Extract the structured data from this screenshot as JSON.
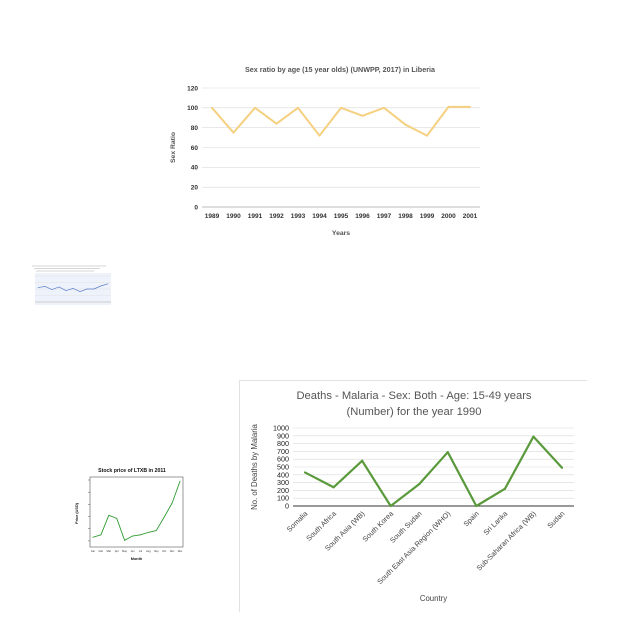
{
  "chart_data": [
    {
      "type": "line",
      "title": "Sex ratio by age (15 year olds) (UNWPP, 2017) in Liberia",
      "xlabel": "Years",
      "ylabel": "Sex Ratio",
      "categories": [
        "1989",
        "1990",
        "1991",
        "1992",
        "1993",
        "1994",
        "1995",
        "1996",
        "1997",
        "1998",
        "1999",
        "2000",
        "2001"
      ],
      "series": [
        {
          "values": [
            100,
            75,
            100,
            84,
            100,
            72,
            100,
            92,
            100,
            83,
            72,
            101,
            101
          ]
        }
      ],
      "ylim": [
        0,
        120
      ],
      "yticks": [
        0,
        20,
        40,
        60,
        80,
        100,
        120
      ],
      "grid": true,
      "color": "#f5d080"
    },
    {
      "type": "line",
      "title": "",
      "xlabel": "",
      "ylabel": "",
      "categories": [
        "",
        "",
        "",
        "",
        "",
        "",
        "",
        "",
        "",
        "",
        ""
      ],
      "series": [
        {
          "values": [
            55,
            60,
            48,
            58,
            44,
            52,
            40,
            50,
            50,
            62,
            70
          ]
        }
      ],
      "ylim": [
        0,
        100
      ],
      "grid": true,
      "color": "#5b7ec9"
    },
    {
      "type": "line",
      "title": "Stock price of LTXB in 2011",
      "xlabel": "Month",
      "ylabel": "Price (USD)",
      "categories": [
        "Jan",
        "Feb",
        "Mar",
        "Apr",
        "May",
        "Jun",
        "Jul",
        "Aug",
        "Sep",
        "Oct",
        "Nov",
        "Dec"
      ],
      "series": [
        {
          "values": [
            10.6,
            11.0,
            14.2,
            13.7,
            10.1,
            10.8,
            11.0,
            11.4,
            11.7,
            13.9,
            16.2,
            19.8
          ]
        }
      ],
      "ylim": [
        9,
        20
      ],
      "grid": false,
      "color": "#2e9b2e"
    },
    {
      "type": "line",
      "title": "Deaths - Malaria - Sex: Both - Age: 15-49 years (Number) for the year 1990",
      "title_lines": [
        "Deaths - Malaria - Sex: Both - Age: 15-49 years",
        "(Number) for the year 1990"
      ],
      "xlabel": "Country",
      "ylabel": "No. of Deaths by Malaria",
      "categories": [
        "Somalia",
        "South Africa",
        "South Asia (WB)",
        "South Korea",
        "South Sudan",
        "South East Asia Region (WHO)",
        "Spain",
        "Sri Lanka",
        "Sub-Saharan Africa (WB)",
        "Sudan"
      ],
      "series": [
        {
          "values": [
            430,
            240,
            580,
            0,
            280,
            690,
            0,
            220,
            890,
            490
          ]
        }
      ],
      "ylim": [
        0,
        1000
      ],
      "yticks": [
        0,
        100,
        200,
        300,
        400,
        500,
        600,
        700,
        800,
        900,
        1000
      ],
      "grid": true,
      "color": "#5a9a3c"
    }
  ]
}
